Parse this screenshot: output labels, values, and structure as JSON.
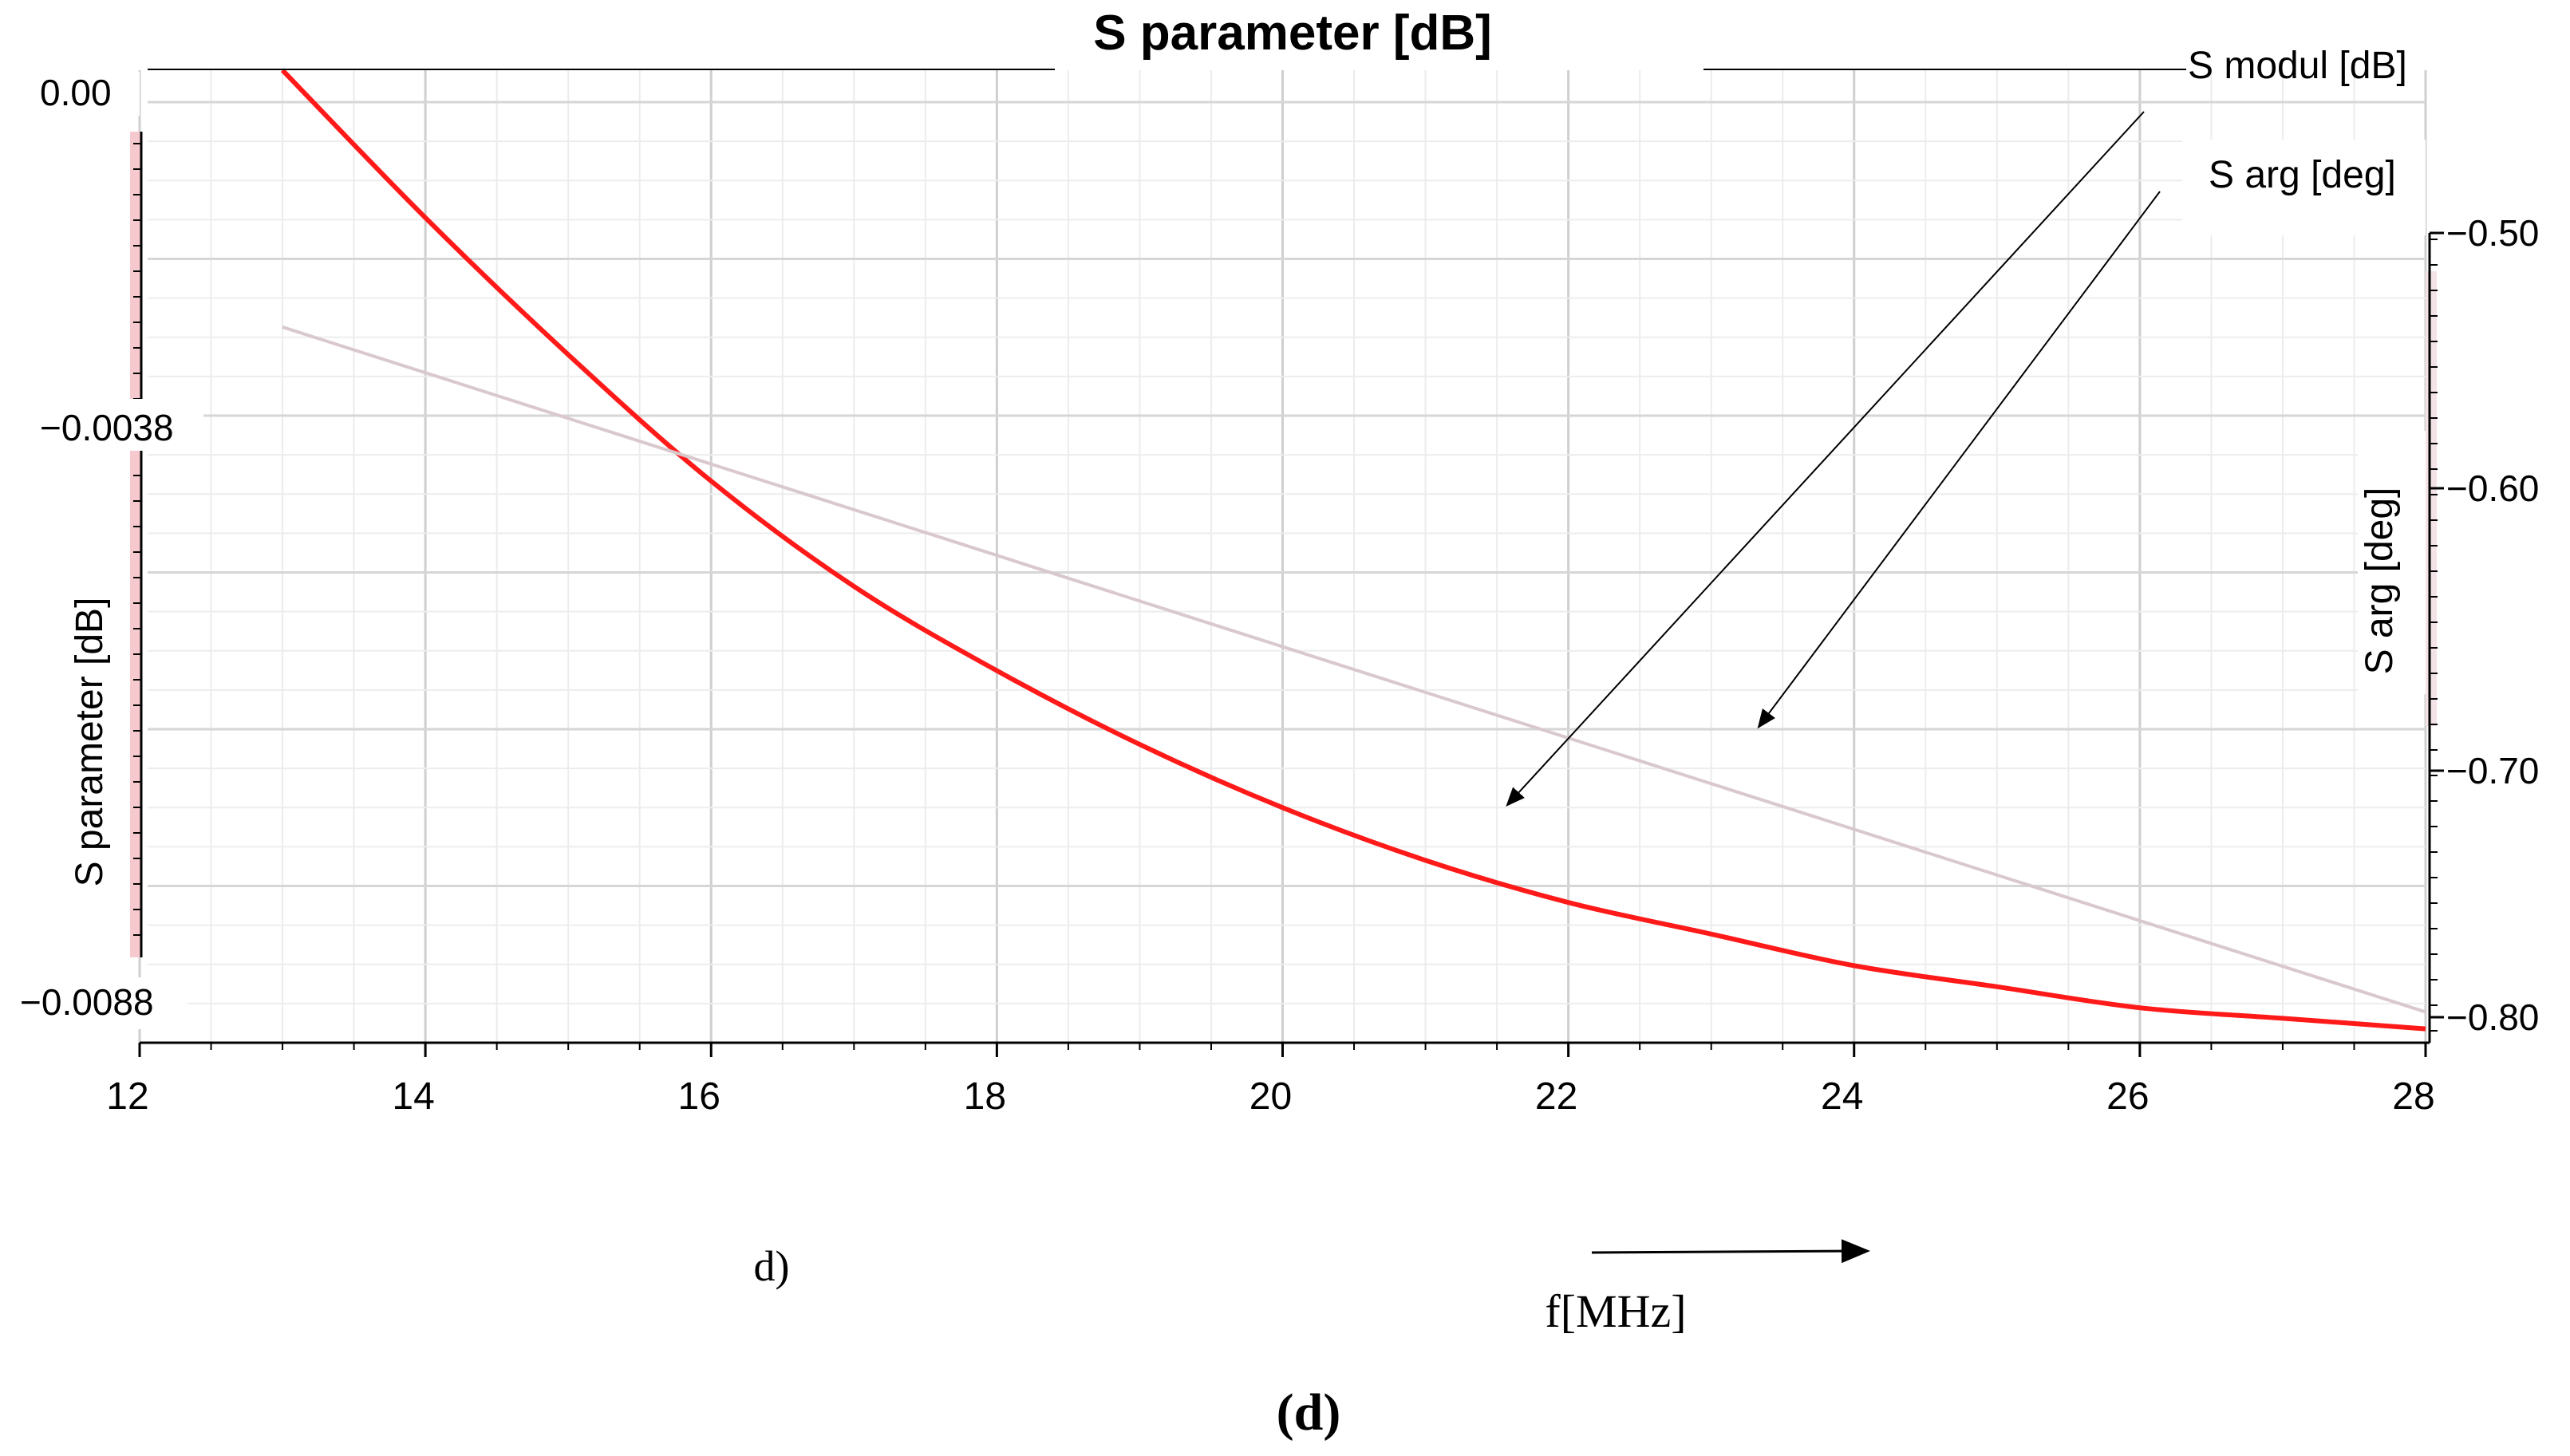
{
  "chart_data": {
    "type": "line",
    "title": "S parameter [dB]",
    "xlabel": "f[MHz]",
    "ylabel_left": "S parameter [dB]",
    "ylabel_right": "S arg [deg]",
    "xlim": [
      12,
      28
    ],
    "ylim_left": [
      -0.0088,
      0.0
    ],
    "ylim_right": [
      -0.8,
      -0.5
    ],
    "x_ticks": [
      "12",
      "14",
      "16",
      "18",
      "20",
      "22",
      "24",
      "26",
      "28"
    ],
    "y_left_ticks": [
      "0.00",
      "−0.0038",
      "−0.0088"
    ],
    "y_right_ticks": [
      "−0.50",
      "−0.60",
      "−0.70",
      "−0.80"
    ],
    "grid": true,
    "series": [
      {
        "name": "S modul [dB]",
        "axis": "left",
        "color": "#ff1a1a",
        "x": [
          13,
          14,
          15,
          16,
          17,
          18,
          19,
          20,
          21,
          22,
          23,
          24,
          25,
          26,
          27,
          28
        ],
        "y": [
          0.0,
          -0.0014,
          -0.0027,
          -0.0039,
          -0.0049,
          -0.0057,
          -0.0064,
          -0.007,
          -0.0075,
          -0.0079,
          -0.0082,
          -0.0085,
          -0.0087,
          -0.0089,
          -0.009,
          -0.0091
        ]
      },
      {
        "name": "S arg [deg]",
        "axis": "right",
        "color": "#d9c8cc",
        "x": [
          13,
          28
        ],
        "y": [
          -0.536,
          -0.798
        ]
      }
    ],
    "annotations": [
      "S modul [dB]",
      "S arg [deg]"
    ]
  },
  "figure": {
    "panel_label": "d)",
    "caption": "(d)"
  }
}
